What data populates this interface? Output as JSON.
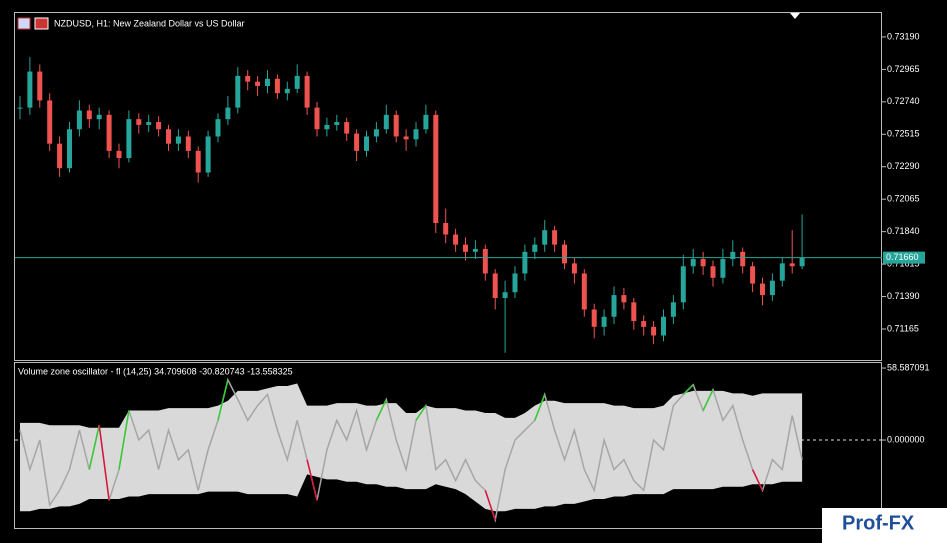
{
  "chart_data": [
    {
      "type": "candlestick",
      "title": "NZDUSD, H1:  New Zealand Dollar vs US Dollar",
      "close": [
        0.727,
        0.7295,
        0.7275,
        0.7245,
        0.7228,
        0.7255,
        0.7268,
        0.7262,
        0.7265,
        0.724,
        0.7235,
        0.7262,
        0.7258,
        0.726,
        0.7255,
        0.7245,
        0.725,
        0.724,
        0.7225,
        0.725,
        0.7262,
        0.727,
        0.7292,
        0.7288,
        0.7285,
        0.729,
        0.728,
        0.7283,
        0.7292,
        0.727,
        0.7255,
        0.7258,
        0.726,
        0.7252,
        0.724,
        0.725,
        0.7255,
        0.7265,
        0.725,
        0.7248,
        0.7255,
        0.7265,
        0.719,
        0.7182,
        0.7175,
        0.717,
        0.7172,
        0.7155,
        0.7138,
        0.7142,
        0.7155,
        0.717,
        0.7175,
        0.7185,
        0.7175,
        0.7162,
        0.7155,
        0.713,
        0.7118,
        0.7125,
        0.714,
        0.7135,
        0.7122,
        0.7118,
        0.7112,
        0.7125,
        0.7135,
        0.716,
        0.7165,
        0.716,
        0.7152,
        0.7165,
        0.717,
        0.716,
        0.7148,
        0.714,
        0.715,
        0.7162,
        0.716,
        0.7166
      ],
      "high": [
        0.7278,
        0.7305,
        0.73,
        0.728,
        0.725,
        0.726,
        0.7275,
        0.7272,
        0.727,
        0.7268,
        0.7245,
        0.7268,
        0.7266,
        0.7265,
        0.7264,
        0.7258,
        0.7255,
        0.7254,
        0.7243,
        0.7254,
        0.7266,
        0.7278,
        0.7298,
        0.7296,
        0.7292,
        0.7296,
        0.7293,
        0.7288,
        0.73,
        0.7295,
        0.7274,
        0.7263,
        0.7265,
        0.7263,
        0.7255,
        0.7254,
        0.726,
        0.7272,
        0.7268,
        0.7255,
        0.726,
        0.7272,
        0.7268,
        0.72,
        0.7186,
        0.718,
        0.7178,
        0.7175,
        0.7158,
        0.715,
        0.716,
        0.7175,
        0.718,
        0.7192,
        0.7188,
        0.7178,
        0.7166,
        0.7158,
        0.7134,
        0.713,
        0.7146,
        0.7145,
        0.7138,
        0.7126,
        0.7122,
        0.713,
        0.714,
        0.7168,
        0.7172,
        0.717,
        0.7164,
        0.7172,
        0.7178,
        0.7173,
        0.7163,
        0.7152,
        0.7155,
        0.7166,
        0.7185,
        0.7196
      ],
      "low": [
        0.7262,
        0.7265,
        0.727,
        0.724,
        0.7222,
        0.7225,
        0.725,
        0.7256,
        0.7255,
        0.7235,
        0.7228,
        0.7232,
        0.7252,
        0.7253,
        0.725,
        0.724,
        0.724,
        0.7235,
        0.7218,
        0.7222,
        0.7246,
        0.7258,
        0.7266,
        0.7282,
        0.7278,
        0.728,
        0.7276,
        0.7275,
        0.728,
        0.7265,
        0.725,
        0.725,
        0.7254,
        0.7247,
        0.7233,
        0.7236,
        0.7246,
        0.7252,
        0.7246,
        0.724,
        0.7243,
        0.7252,
        0.7183,
        0.7176,
        0.717,
        0.7164,
        0.7165,
        0.715,
        0.713,
        0.71,
        0.7138,
        0.715,
        0.7165,
        0.717,
        0.717,
        0.7158,
        0.7148,
        0.7125,
        0.711,
        0.7112,
        0.712,
        0.713,
        0.7116,
        0.7112,
        0.7106,
        0.7108,
        0.712,
        0.713,
        0.7155,
        0.7154,
        0.7146,
        0.7148,
        0.716,
        0.7155,
        0.7142,
        0.7133,
        0.7136,
        0.7146,
        0.7155,
        0.7158
      ],
      "bull_color": "#26a69a",
      "bear_color": "#ef5350",
      "ylim": [
        0.7095,
        0.73363
      ],
      "yticks": [
        {
          "value": 0.7319,
          "label": "0.73190"
        },
        {
          "value": 0.72965,
          "label": "0.72965"
        },
        {
          "value": 0.7274,
          "label": "0.72740"
        },
        {
          "value": 0.72515,
          "label": "0.72515"
        },
        {
          "value": 0.7229,
          "label": "0.72290"
        },
        {
          "value": 0.72065,
          "label": "0.72065"
        },
        {
          "value": 0.7184,
          "label": "0.71840"
        },
        {
          "value": 0.71615,
          "label": "0.71615"
        },
        {
          "value": 0.7139,
          "label": "0.71390"
        },
        {
          "value": 0.71165,
          "label": "0.71165"
        }
      ],
      "current": {
        "value": 0.7166,
        "label": "0.71660"
      },
      "current_color": "#26a69a"
    },
    {
      "type": "line",
      "title": "Volume zone oscillator - fl (14,25) 34.709608 -30.820743 -13.558325",
      "values": [
        8,
        -24,
        0,
        -53,
        -41,
        -24,
        8,
        -24,
        12,
        -49,
        -24,
        24,
        0,
        8,
        -24,
        8,
        -16,
        -8,
        -41,
        -8,
        16,
        49,
        33,
        16,
        28,
        37,
        8,
        -16,
        16,
        -16,
        -49,
        -8,
        16,
        0,
        24,
        -8,
        16,
        33,
        0,
        -24,
        16,
        28,
        -24,
        -16,
        -33,
        -16,
        -33,
        -41,
        -65,
        -24,
        0,
        8,
        16,
        37,
        8,
        -16,
        8,
        -24,
        -41,
        0,
        -24,
        -16,
        -33,
        -41,
        0,
        -8,
        28,
        37,
        45,
        24,
        41,
        16,
        28,
        0,
        -24,
        -41,
        -16,
        -24,
        20,
        -16
      ],
      "upper": [
        14,
        14,
        14,
        12,
        12,
        12,
        12,
        10,
        10,
        10,
        10,
        24,
        24,
        24,
        24,
        26,
        26,
        26,
        26,
        26,
        28,
        32,
        40,
        40,
        40,
        42,
        44,
        44,
        46,
        28,
        28,
        28,
        30,
        30,
        30,
        28,
        28,
        30,
        30,
        22,
        22,
        28,
        26,
        26,
        26,
        24,
        24,
        22,
        22,
        18,
        18,
        22,
        28,
        32,
        32,
        30,
        30,
        30,
        30,
        30,
        28,
        28,
        26,
        26,
        26,
        28,
        36,
        38,
        40,
        40,
        40,
        40,
        38,
        38,
        36,
        38,
        38,
        38,
        38,
        38
      ],
      "lower": [
        -58,
        -58,
        -56,
        -56,
        -54,
        -54,
        -52,
        -48,
        -48,
        -48,
        -48,
        -46,
        -46,
        -44,
        -44,
        -44,
        -44,
        -44,
        -44,
        -42,
        -42,
        -42,
        -42,
        -44,
        -44,
        -44,
        -44,
        -44,
        -46,
        -28,
        -30,
        -32,
        -32,
        -34,
        -34,
        -36,
        -36,
        -38,
        -38,
        -40,
        -40,
        -40,
        -36,
        -38,
        -40,
        -44,
        -50,
        -56,
        -58,
        -58,
        -56,
        -56,
        -56,
        -54,
        -54,
        -52,
        -52,
        -50,
        -48,
        -48,
        -46,
        -46,
        -44,
        -44,
        -44,
        -44,
        -40,
        -40,
        -40,
        -40,
        -40,
        -38,
        -38,
        -38,
        -36,
        -36,
        -36,
        -34,
        -34,
        -34
      ],
      "color": "#a6a6a6",
      "band_color": "#d9d9d9",
      "up_color": "#32cd32",
      "down_color": "#dc143c",
      "ylim": [
        -71.6,
        63.5
      ],
      "yticks": [
        {
          "value": 58.587091,
          "label": "58.587091"
        },
        {
          "value": 0,
          "label": "0.000000"
        }
      ]
    }
  ],
  "watermark": "Prof-FX"
}
